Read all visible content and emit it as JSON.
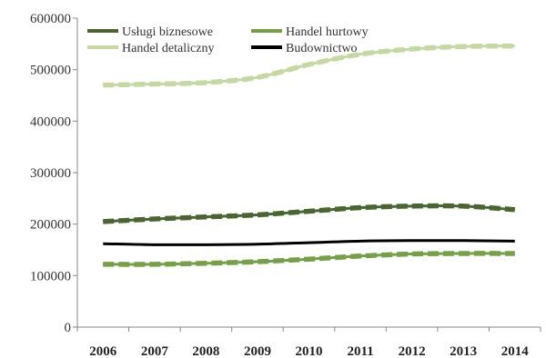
{
  "chart_data": {
    "type": "line",
    "title": "",
    "xlabel": "",
    "ylabel": "",
    "x": [
      "2006",
      "2007",
      "2008",
      "2009",
      "2010",
      "2011",
      "2012",
      "2013",
      "2014"
    ],
    "ylim": [
      0,
      600000
    ],
    "yticks": [
      "0",
      "100000",
      "200000",
      "300000",
      "400000",
      "500000",
      "600000"
    ],
    "grid": false,
    "legend_position": "top",
    "series": [
      {
        "name": "Usługi biznesowe",
        "color": "#4a6630",
        "dashed": true,
        "values": [
          205000,
          210000,
          214000,
          218000,
          225000,
          232000,
          235000,
          235000,
          228000
        ]
      },
      {
        "name": "Handel hurtowy",
        "color": "#76a046",
        "dashed": true,
        "values": [
          122000,
          122000,
          124000,
          127000,
          132000,
          138000,
          142000,
          143000,
          143000
        ]
      },
      {
        "name": "Handel detaliczny",
        "color": "#c3d9a0",
        "dashed": true,
        "values": [
          470000,
          472000,
          475000,
          485000,
          510000,
          530000,
          540000,
          545000,
          546000
        ]
      },
      {
        "name": "Budownictwo",
        "color": "#000000",
        "dashed": false,
        "values": [
          162000,
          160000,
          160000,
          161000,
          164000,
          167000,
          168000,
          168000,
          167000
        ]
      }
    ]
  }
}
